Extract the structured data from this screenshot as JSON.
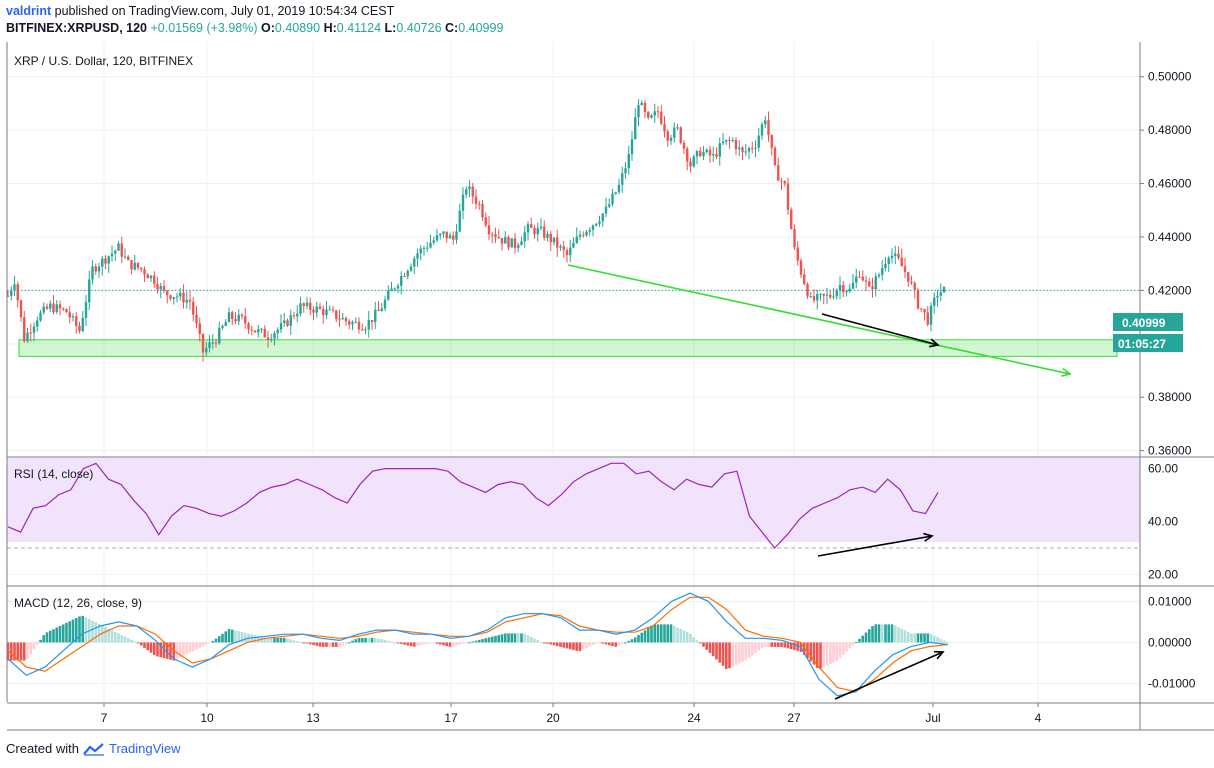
{
  "header": {
    "user": "valdrint",
    "published_text": "published on TradingView.com, July 01, 2019 10:54:34 CEST",
    "symbol": "BITFINEX:XRPUSD, 120",
    "change": "+0.01569 (+3.98%)",
    "o_label": "O:",
    "o_value": "0.40890",
    "h_label": "H:",
    "h_value": "0.41124",
    "l_label": "L:",
    "l_value": "0.40726",
    "c_label": "C:",
    "c_value": "0.40999"
  },
  "footer": {
    "created_with": "Created with",
    "brand": "TradingView"
  },
  "colors": {
    "up": "#26a69a",
    "down": "#ef5350",
    "trend": "#33dd33",
    "rsi": "#9c27b0",
    "macd": "#2196f3",
    "signal": "#ff6d00",
    "price_tag": "#26a69a"
  },
  "chart_data": [
    {
      "type": "candlestick",
      "title": "XRP / U.S. Dollar, 120, BITFINEX",
      "x_ticks": [
        "7",
        "10",
        "13",
        "17",
        "20",
        "24",
        "27",
        "Jul",
        "4"
      ],
      "y_ticks": [
        "0.50000",
        "0.48000",
        "0.46000",
        "0.44000",
        "0.42000",
        "0.38000",
        "0.36000"
      ],
      "ylim": [
        0.358,
        0.513
      ],
      "last_price": "0.40999",
      "countdown": "01:05:27",
      "price_path": [
        [
          0,
          0.418
        ],
        [
          2,
          0.424
        ],
        [
          5,
          0.402
        ],
        [
          9,
          0.41
        ],
        [
          13,
          0.414
        ],
        [
          18,
          0.412
        ],
        [
          22,
          0.405
        ],
        [
          26,
          0.428
        ],
        [
          30,
          0.432
        ],
        [
          34,
          0.436
        ],
        [
          37,
          0.43
        ],
        [
          41,
          0.428
        ],
        [
          45,
          0.424
        ],
        [
          48,
          0.419
        ],
        [
          52,
          0.418
        ],
        [
          56,
          0.416
        ],
        [
          60,
          0.397
        ],
        [
          64,
          0.402
        ],
        [
          68,
          0.41
        ],
        [
          72,
          0.409
        ],
        [
          76,
          0.405
        ],
        [
          80,
          0.403
        ],
        [
          85,
          0.407
        ],
        [
          90,
          0.414
        ],
        [
          95,
          0.413
        ],
        [
          100,
          0.411
        ],
        [
          105,
          0.408
        ],
        [
          110,
          0.407
        ],
        [
          114,
          0.412
        ],
        [
          118,
          0.42
        ],
        [
          122,
          0.427
        ],
        [
          126,
          0.434
        ],
        [
          130,
          0.438
        ],
        [
          134,
          0.441
        ],
        [
          137,
          0.439
        ],
        [
          141,
          0.459
        ],
        [
          145,
          0.452
        ],
        [
          148,
          0.443
        ],
        [
          152,
          0.439
        ],
        [
          156,
          0.437
        ],
        [
          160,
          0.443
        ],
        [
          164,
          0.442
        ],
        [
          168,
          0.438
        ],
        [
          172,
          0.433
        ],
        [
          176,
          0.441
        ],
        [
          180,
          0.445
        ],
        [
          184,
          0.45
        ],
        [
          188,
          0.459
        ],
        [
          191,
          0.47
        ],
        [
          194,
          0.491
        ],
        [
          197,
          0.483
        ],
        [
          200,
          0.487
        ],
        [
          203,
          0.478
        ],
        [
          206,
          0.48
        ],
        [
          210,
          0.467
        ],
        [
          213,
          0.472
        ],
        [
          217,
          0.47
        ],
        [
          220,
          0.475
        ],
        [
          223,
          0.476
        ],
        [
          226,
          0.471
        ],
        [
          230,
          0.475
        ],
        [
          233,
          0.485
        ],
        [
          236,
          0.465
        ],
        [
          239,
          0.459
        ],
        [
          242,
          0.435
        ],
        [
          244,
          0.427
        ],
        [
          247,
          0.416
        ],
        [
          250,
          0.417
        ],
        [
          253,
          0.418
        ],
        [
          256,
          0.422
        ],
        [
          259,
          0.42
        ],
        [
          262,
          0.427
        ],
        [
          265,
          0.42
        ],
        [
          268,
          0.426
        ],
        [
          271,
          0.434
        ],
        [
          274,
          0.431
        ],
        [
          277,
          0.425
        ],
        [
          280,
          0.415
        ],
        [
          283,
          0.409
        ],
        [
          286,
          0.419
        ],
        [
          288,
          0.42
        ]
      ]
    },
    {
      "type": "line",
      "title": "RSI (14, close)",
      "y_ticks": [
        "60.00",
        "40.00",
        "20.00"
      ],
      "ylim": [
        16,
        64
      ],
      "values": [
        38,
        36,
        45,
        46,
        50,
        52,
        60,
        62,
        56,
        54,
        48,
        43,
        35,
        42,
        46,
        45,
        43,
        42,
        44,
        47,
        51,
        53,
        54,
        56,
        54,
        52,
        49,
        47,
        54,
        59,
        60,
        60,
        60,
        60,
        60,
        59,
        55,
        53,
        51,
        54,
        55,
        54,
        49,
        46,
        50,
        55,
        58,
        60,
        62,
        62,
        58,
        59,
        55,
        52,
        56,
        54,
        53,
        58,
        59,
        42,
        36,
        30,
        35,
        41,
        45,
        47,
        49,
        52,
        53,
        51,
        56,
        52,
        44,
        43,
        51
      ]
    },
    {
      "type": "line",
      "title": "MACD (12, 26, close, 9)",
      "y_ticks": [
        "0.01000",
        "0.00000",
        "-0.01000"
      ],
      "ylim": [
        -0.0145,
        0.0135
      ],
      "series": [
        {
          "values": [
            -0.004,
            -0.008,
            -0.006,
            -0.002,
            0.002,
            0.004,
            0.005,
            0.004,
            0.0005,
            -0.004,
            -0.006,
            -0.004,
            -0.0005,
            0.001,
            0.0015,
            0.002,
            0.002,
            0.001,
            0.0005,
            0.002,
            0.003,
            0.003,
            0.002,
            0.002,
            0.001,
            0.0015,
            0.003,
            0.006,
            0.007,
            0.007,
            0.006,
            0.003,
            0.003,
            0.002,
            0.003,
            0.006,
            0.01,
            0.012,
            0.01,
            0.005,
            0.001,
            0.001,
            0.0005,
            -0.001,
            -0.009,
            -0.013,
            -0.012,
            -0.007,
            -0.003,
            -0.001,
            0.0,
            -0.0005
          ]
        },
        {
          "values": [
            -0.002,
            -0.006,
            -0.007,
            -0.004,
            -0.001,
            0.002,
            0.004,
            0.004,
            0.002,
            -0.002,
            -0.005,
            -0.004,
            -0.002,
            0.0,
            0.001,
            0.0015,
            0.002,
            0.0015,
            0.001,
            0.0015,
            0.0025,
            0.003,
            0.0025,
            0.002,
            0.0015,
            0.0015,
            0.0025,
            0.005,
            0.006,
            0.007,
            0.0065,
            0.004,
            0.003,
            0.0025,
            0.0025,
            0.004,
            0.008,
            0.011,
            0.011,
            0.008,
            0.003,
            0.0015,
            0.001,
            0.0,
            -0.006,
            -0.011,
            -0.012,
            -0.009,
            -0.005,
            -0.002,
            -0.001,
            -0.0005
          ]
        }
      ]
    }
  ]
}
